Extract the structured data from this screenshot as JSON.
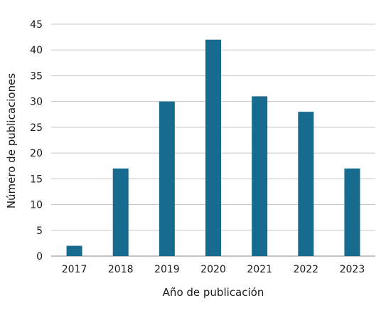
{
  "chart_data": {
    "type": "bar",
    "categories": [
      "2017",
      "2018",
      "2019",
      "2020",
      "2021",
      "2022",
      "2023"
    ],
    "values": [
      2,
      17,
      30,
      42,
      31,
      28,
      17
    ],
    "xlabel": "Año de publicación",
    "ylabel": "Número de publicaciones",
    "ylim": [
      0,
      45
    ],
    "yticks": [
      0,
      5,
      10,
      15,
      20,
      25,
      30,
      35,
      40,
      45
    ],
    "grid": "horizontal",
    "bar_color": "#176b8f",
    "grid_color": "#c7c7c7"
  }
}
